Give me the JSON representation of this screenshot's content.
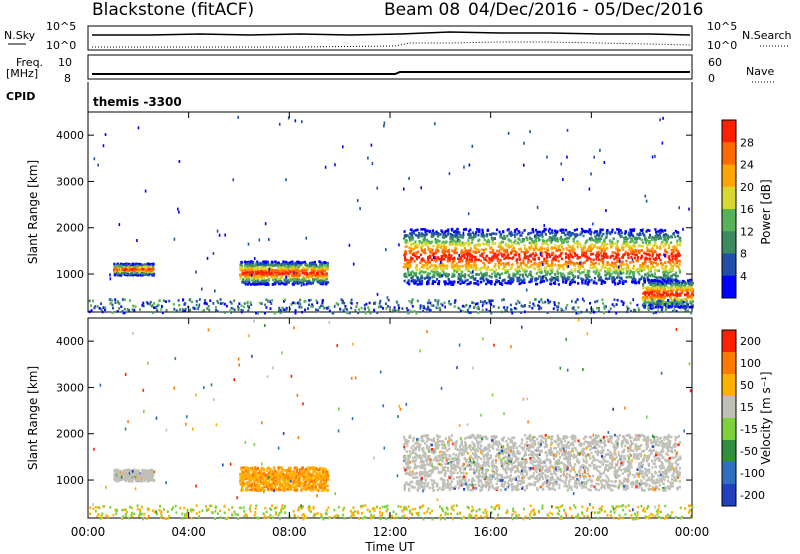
{
  "header": {
    "station": "Blackstone (fitACF)",
    "beam": "Beam 08",
    "date_range": "04/Dec/2016 - 05/Dec/2016"
  },
  "top_panels": {
    "nsky_label": "N.Sky",
    "nsearch_label": "N.Search",
    "freq_label": "Freq.",
    "freq_unit": "[MHz]",
    "nave_label": "Nave",
    "cpid_label": "CPID",
    "cpid_value": "themis -3300",
    "noise_ticks": [
      "10^5",
      "10^0"
    ],
    "freq_ticks": [
      "10",
      "8"
    ],
    "nave_ticks": [
      "60",
      "0"
    ]
  },
  "chart_data": [
    {
      "type": "heatmap",
      "name": "power-panel",
      "ylabel": "Slant Range [km]",
      "yticks": [
        1000,
        2000,
        3000,
        4000
      ],
      "ylim": [
        180,
        4500
      ],
      "xlim_hours": [
        0,
        24
      ],
      "colorbar": {
        "label": "Power [dB]",
        "ticks": [
          "4",
          "8",
          "12",
          "16",
          "20",
          "24",
          "28"
        ],
        "colors": [
          "#0000ff",
          "#1f4fa8",
          "#3c8a5e",
          "#58b25a",
          "#d8d830",
          "#ffa500",
          "#ff6a00",
          "#ff2000"
        ]
      },
      "scatter_regions": [
        {
          "t0": 1.0,
          "t1": 2.6,
          "r0": 1000,
          "r1": 1250,
          "color": "power"
        },
        {
          "t0": 12.5,
          "t1": 23.5,
          "r0": 800,
          "r1": 2000,
          "color": "power"
        },
        {
          "t0": 6.0,
          "t1": 9.5,
          "r0": 800,
          "r1": 1300,
          "color": "power"
        },
        {
          "t0": 22.0,
          "t1": 24.0,
          "r0": 300,
          "r1": 900,
          "color": "power"
        }
      ]
    },
    {
      "type": "heatmap",
      "name": "velocity-panel",
      "ylabel": "Slant Range [km]",
      "yticks": [
        1000,
        2000,
        3000,
        4000
      ],
      "ylim": [
        180,
        4500
      ],
      "xlim_hours": [
        0,
        24
      ],
      "colorbar": {
        "label": "Velocity [m s⁻¹]",
        "ticks": [
          "200",
          "100",
          "50",
          "15",
          "-15",
          "-50",
          "-100",
          "-200"
        ],
        "colors": [
          "#2040c0",
          "#2f6fbf",
          "#2f8f3f",
          "#7cd23a",
          "#c0c0b8",
          "#ffb000",
          "#ff7a00",
          "#ff2000"
        ]
      },
      "scatter_regions": [
        {
          "t0": 12.5,
          "t1": 23.5,
          "r0": 800,
          "r1": 2000,
          "color": "grey"
        },
        {
          "t0": 6.0,
          "t1": 9.5,
          "r0": 800,
          "r1": 1300,
          "color": "orange"
        },
        {
          "t0": 1.0,
          "t1": 2.6,
          "r0": 1000,
          "r1": 1250,
          "color": "grey"
        }
      ]
    }
  ],
  "xaxis": {
    "ticks": [
      "00:00",
      "04:00",
      "08:00",
      "12:00",
      "16:00",
      "20:00",
      "00:00"
    ],
    "label": "Time UT"
  }
}
